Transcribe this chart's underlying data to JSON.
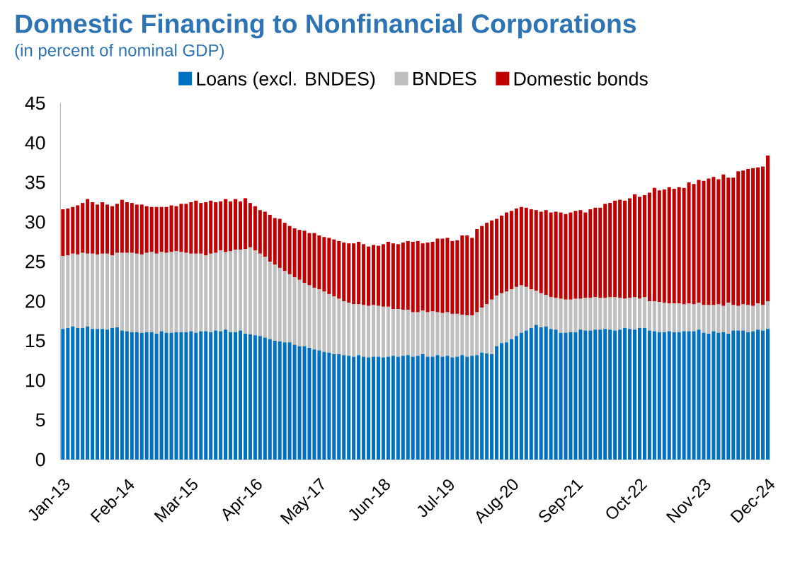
{
  "chart_data": {
    "type": "bar",
    "stacked": true,
    "title": "Domestic Financing to Nonfinancial Corporations",
    "subtitle": "(in percent of nominal GDP)",
    "categories": [
      "Jan-13",
      null,
      null,
      null,
      null,
      null,
      null,
      null,
      null,
      null,
      null,
      null,
      null,
      "Feb-14",
      null,
      null,
      null,
      null,
      null,
      null,
      null,
      null,
      null,
      null,
      null,
      null,
      "Mar-15",
      null,
      null,
      null,
      null,
      null,
      null,
      null,
      null,
      null,
      null,
      null,
      null,
      "Apr-16",
      null,
      null,
      null,
      null,
      null,
      null,
      null,
      null,
      null,
      null,
      null,
      null,
      "May-17",
      null,
      null,
      null,
      null,
      null,
      null,
      null,
      null,
      null,
      null,
      null,
      null,
      "Jun-18",
      null,
      null,
      null,
      null,
      null,
      null,
      null,
      null,
      null,
      null,
      null,
      null,
      "Jul-19",
      null,
      null,
      null,
      null,
      null,
      null,
      null,
      null,
      null,
      null,
      null,
      null,
      "Aug-20",
      null,
      null,
      null,
      null,
      null,
      null,
      null,
      null,
      null,
      null,
      null,
      null,
      "Sep-21",
      null,
      null,
      null,
      null,
      null,
      null,
      null,
      null,
      null,
      null,
      null,
      null,
      "Oct-22",
      null,
      null,
      null,
      null,
      null,
      null,
      null,
      null,
      null,
      null,
      null,
      null,
      "Nov-23",
      null,
      null,
      null,
      null,
      null,
      null,
      null,
      null,
      null,
      null,
      null,
      null,
      "Dec-24"
    ],
    "series": [
      {
        "name": "Loans (excl. BNDES)",
        "color": "#0070c0",
        "values": [
          16.5,
          16.6,
          16.8,
          16.6,
          16.6,
          16.8,
          16.5,
          16.5,
          16.5,
          16.4,
          16.6,
          16.7,
          16.3,
          16.2,
          16.1,
          16.1,
          16.0,
          16.1,
          16.1,
          15.9,
          16.2,
          16.0,
          16.0,
          16.1,
          16.1,
          16.1,
          16.2,
          16.0,
          16.2,
          16.2,
          16.1,
          16.3,
          16.2,
          16.4,
          16.1,
          16.1,
          16.3,
          15.9,
          15.8,
          15.7,
          15.6,
          15.4,
          15.2,
          15.0,
          14.9,
          14.8,
          14.8,
          14.5,
          14.3,
          14.3,
          14.1,
          13.9,
          13.8,
          13.6,
          13.5,
          13.3,
          13.3,
          13.2,
          13.1,
          13.0,
          13.2,
          13.0,
          12.9,
          13.0,
          13.0,
          12.9,
          13.0,
          13.1,
          13.0,
          13.1,
          13.2,
          13.0,
          13.1,
          13.3,
          13.0,
          13.0,
          13.2,
          13.0,
          13.1,
          12.9,
          13.0,
          13.2,
          13.0,
          13.1,
          13.2,
          13.5,
          13.4,
          13.3,
          14.3,
          14.7,
          14.8,
          15.2,
          15.6,
          16.0,
          16.3,
          16.6,
          17.0,
          16.7,
          16.8,
          16.5,
          16.4,
          16.0,
          16.0,
          16.1,
          16.1,
          16.4,
          16.3,
          16.3,
          16.4,
          16.4,
          16.5,
          16.4,
          16.3,
          16.4,
          16.6,
          16.5,
          16.4,
          16.6,
          16.6,
          16.3,
          16.2,
          16.1,
          16.1,
          16.2,
          16.1,
          16.1,
          16.2,
          16.2,
          16.2,
          16.4,
          16.0,
          15.9,
          16.2,
          16.0,
          16.1,
          15.9,
          16.3,
          16.3,
          16.3,
          16.1,
          16.2,
          16.4,
          16.3,
          16.5
        ]
      },
      {
        "name": "BNDES",
        "color": "#bfbfbf",
        "values": [
          9.2,
          9.2,
          9.2,
          9.3,
          9.5,
          9.2,
          9.5,
          9.4,
          9.5,
          9.6,
          9.2,
          9.4,
          9.8,
          9.9,
          10.0,
          9.9,
          9.9,
          10.0,
          10.1,
          10.1,
          10.0,
          10.1,
          10.2,
          10.2,
          10.1,
          10.0,
          9.8,
          10.0,
          9.8,
          9.6,
          9.9,
          9.8,
          10.2,
          9.8,
          10.2,
          10.4,
          10.2,
          10.7,
          11.0,
          10.7,
          10.4,
          10.2,
          9.8,
          9.6,
          9.3,
          9.0,
          8.6,
          8.5,
          8.4,
          8.0,
          7.9,
          7.8,
          7.7,
          7.6,
          7.4,
          7.3,
          7.0,
          6.8,
          6.7,
          6.6,
          6.4,
          6.5,
          6.5,
          6.5,
          6.4,
          6.4,
          6.3,
          5.9,
          6.0,
          5.8,
          5.7,
          5.6,
          5.5,
          5.5,
          5.6,
          5.7,
          5.4,
          5.5,
          5.5,
          5.5,
          5.4,
          5.1,
          5.2,
          5.1,
          5.4,
          5.7,
          6.2,
          6.9,
          6.4,
          6.3,
          6.4,
          6.3,
          6.2,
          6.0,
          5.5,
          4.9,
          4.3,
          4.3,
          4.0,
          4.0,
          4.0,
          4.3,
          4.2,
          4.1,
          4.2,
          3.9,
          4.1,
          4.1,
          4.1,
          4.0,
          3.9,
          4.1,
          4.2,
          4.0,
          3.7,
          3.9,
          4.1,
          3.7,
          3.9,
          3.7,
          3.8,
          3.8,
          3.7,
          3.5,
          3.6,
          3.6,
          3.4,
          3.5,
          3.4,
          3.4,
          3.5,
          3.6,
          3.3,
          3.6,
          3.3,
          3.9,
          3.2,
          3.1,
          3.3,
          3.4,
          3.2,
          3.3,
          3.2,
          3.5
        ]
      },
      {
        "name": "Domestic bonds",
        "color": "#c00000",
        "values": [
          5.9,
          5.9,
          5.9,
          6.2,
          6.3,
          6.9,
          6.5,
          6.3,
          6.5,
          6.2,
          6.2,
          6.2,
          6.7,
          6.4,
          6.3,
          6.2,
          6.3,
          5.9,
          5.7,
          5.9,
          5.7,
          5.8,
          5.9,
          5.7,
          6.1,
          6.2,
          6.5,
          6.7,
          6.4,
          6.7,
          6.7,
          6.4,
          6.2,
          6.7,
          6.3,
          6.4,
          6.1,
          6.4,
          5.6,
          5.6,
          5.5,
          5.7,
          5.9,
          5.9,
          6.2,
          6.1,
          6.1,
          6.2,
          6.3,
          6.6,
          6.6,
          6.9,
          6.8,
          6.9,
          7.1,
          7.2,
          7.3,
          7.4,
          7.5,
          7.7,
          7.9,
          7.7,
          7.5,
          7.6,
          7.6,
          7.9,
          8.2,
          8.3,
          8.2,
          8.5,
          8.7,
          8.9,
          9.0,
          8.5,
          8.8,
          8.8,
          9.3,
          9.4,
          9.4,
          9.2,
          9.3,
          10.0,
          10.1,
          9.8,
          10.5,
          10.3,
          10.3,
          10.0,
          9.7,
          9.8,
          10.0,
          9.9,
          9.9,
          9.9,
          10.0,
          10.1,
          10.2,
          10.3,
          10.7,
          10.7,
          10.9,
          10.9,
          10.8,
          11.0,
          11.1,
          11.2,
          10.8,
          11.2,
          11.3,
          11.4,
          11.9,
          11.9,
          12.2,
          12.4,
          12.4,
          12.6,
          13.0,
          12.9,
          12.9,
          13.7,
          14.3,
          14.1,
          14.3,
          14.7,
          14.5,
          14.7,
          14.7,
          15.3,
          15.2,
          15.5,
          15.7,
          16.0,
          16.2,
          15.8,
          16.6,
          15.8,
          16.1,
          17.0,
          16.9,
          17.2,
          17.4,
          17.2,
          17.5,
          18.4
        ]
      }
    ],
    "ylim": [
      0,
      45
    ],
    "yticks": [
      0,
      5,
      10,
      15,
      20,
      25,
      30,
      35,
      40,
      45
    ],
    "legend": "top",
    "grid": false
  }
}
